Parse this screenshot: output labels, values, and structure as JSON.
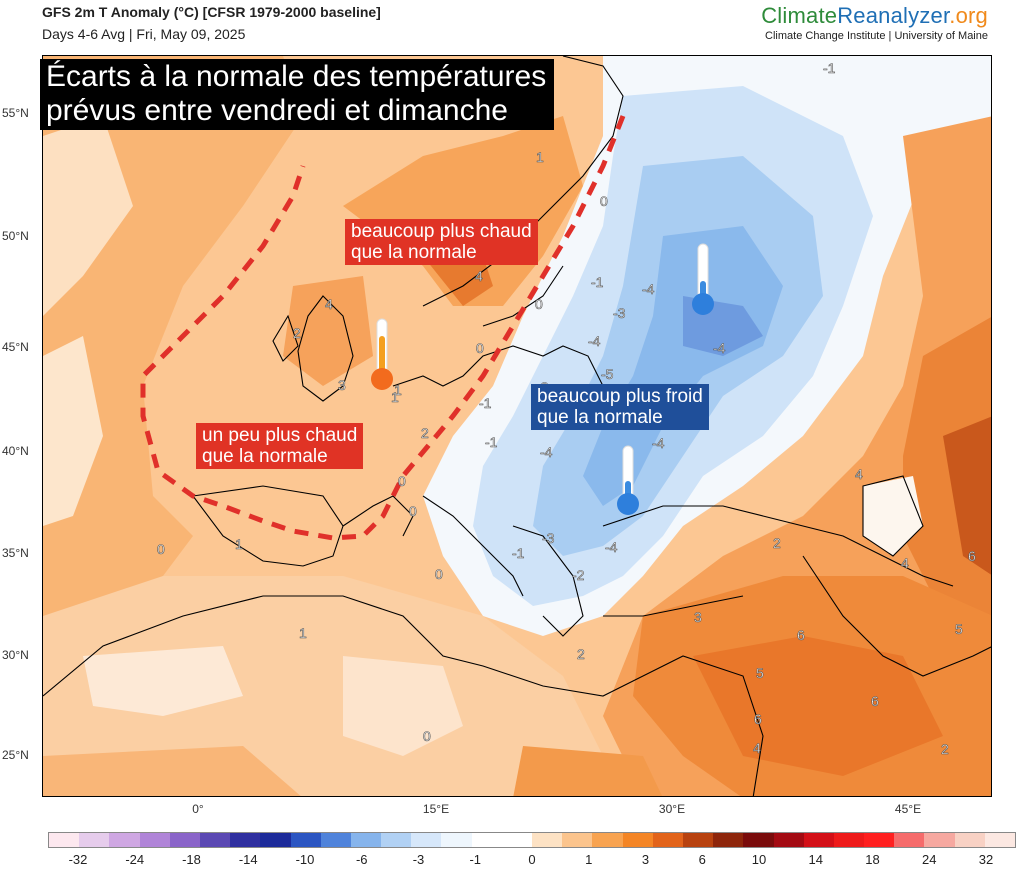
{
  "header": {
    "title": "GFS 2m T Anomaly (°C) [CFSR 1979-2000 baseline]",
    "subtitle": "Days 4-6 Avg | Fri, May 09, 2025"
  },
  "brand": {
    "logo_climate": "Climate",
    "logo_reanalyzer": "Reanalyzer",
    "logo_org": ".org",
    "institution": "Climate Change Institute | University of Maine"
  },
  "map": {
    "headline_line1": "Écarts à la normale des températures",
    "headline_line2": "prévus entre vendredi et dimanche",
    "labels": {
      "much_warmer_1": "beaucoup plus chaud",
      "much_warmer_2": "que la normale",
      "slightly_warmer_1": "un peu plus chaud",
      "slightly_warmer_2": "que la normale",
      "much_colder_1": "beaucoup plus froid",
      "much_colder_2": "que la normale"
    },
    "latitudes": [
      "55°N",
      "50°N",
      "45°N",
      "40°N",
      "35°N",
      "30°N",
      "25°N"
    ],
    "longitudes": [
      "0°",
      "15°E",
      "30°E",
      "45°E"
    ],
    "contour_labels": [
      "-1",
      "1",
      "0",
      "4",
      "2",
      "3",
      "4",
      "1",
      "0",
      "-4",
      "-3",
      "-4",
      "-4",
      "-5",
      "-1",
      "-3",
      "-1",
      "-4",
      "-4",
      "1",
      "0",
      "2",
      "0",
      "0",
      "-1",
      "-1",
      "-3",
      "-4",
      "-2",
      "4",
      "2",
      "6",
      "4",
      "1",
      "0",
      "1",
      "0",
      "3",
      "6",
      "5",
      "5",
      "2",
      "0",
      "6",
      "4",
      "6",
      "2"
    ]
  },
  "colorbar": {
    "ticks": [
      "-32",
      "-24",
      "-18",
      "-14",
      "-10",
      "-6",
      "-3",
      "-1",
      "0",
      "1",
      "3",
      "6",
      "10",
      "14",
      "18",
      "24",
      "32"
    ],
    "colors": [
      "#fde8ef",
      "#e6ccec",
      "#cfa7e3",
      "#b084d8",
      "#8a64c9",
      "#5b48b3",
      "#2f2fa0",
      "#1c2a9a",
      "#2b55c2",
      "#4f83db",
      "#86b4ec",
      "#b1d1f4",
      "#d6e7fa",
      "#eef6fd",
      "#ffffff",
      "#ffffff",
      "#fde2c4",
      "#fbc48d",
      "#f8a350",
      "#f48525",
      "#e2631a",
      "#b8420f",
      "#8e250b",
      "#7a0b0b",
      "#a30a12",
      "#d30f17",
      "#ee1a1a",
      "#ff1f1f",
      "#f56b6b",
      "#f6a8a0",
      "#f8d1c4",
      "#fce8e2"
    ]
  }
}
